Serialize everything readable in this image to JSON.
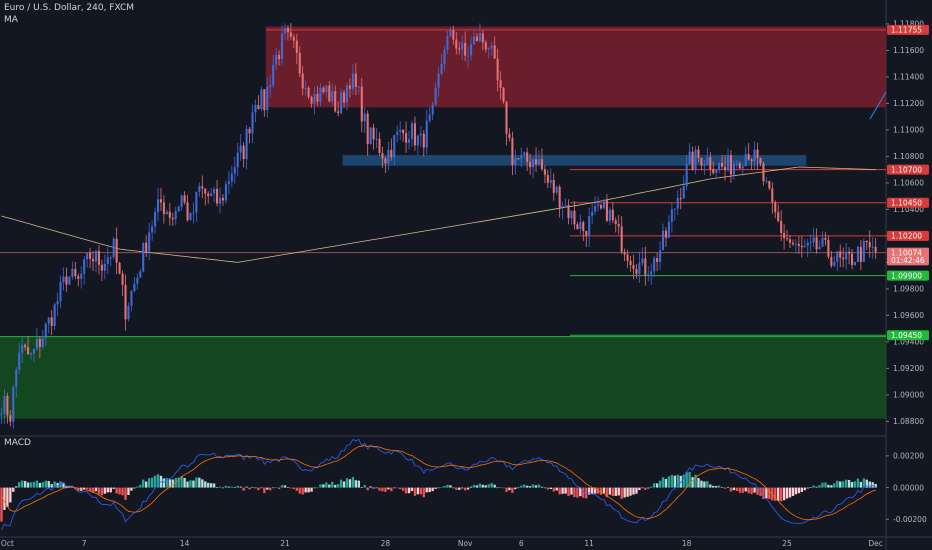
{
  "header": {
    "symbol_line": "Euro / U.S. Dollar, 240, FXCM",
    "indicator": "MA"
  },
  "macd_panel": {
    "label": "MACD"
  },
  "colors": {
    "background": "#131722",
    "up": "#3f6ad8",
    "down": "#e87272",
    "supply_zone": "#7a1f2b",
    "demand_zone": "#15501f",
    "blue_zone": "#1e4f7a",
    "ma": "#d3b98a",
    "resistance_line": "#d93a3a",
    "support_line": "#22b83a",
    "macd_pos": "#26a69a",
    "macd_neg": "#ef5350",
    "macd_line": "#2962ff",
    "signal_line": "#ff6d00"
  },
  "chart_data": {
    "type": "candlestick",
    "title": "Euro / U.S. Dollar, 240, FXCM",
    "timeframe": "240",
    "ylim": [
      1.0872,
      1.1192
    ],
    "price_ticks": [
      "1.11800",
      "1.11600",
      "1.11400",
      "1.11200",
      "1.11000",
      "1.10800",
      "1.10600",
      "1.10400",
      "1.10200",
      "1.10000",
      "1.09800",
      "1.09600",
      "1.09400",
      "1.09200",
      "1.09000",
      "1.08800"
    ],
    "x_ticks": [
      {
        "label": "Oct",
        "bar": 2
      },
      {
        "label": "7",
        "bar": 28
      },
      {
        "label": "14",
        "bar": 62
      },
      {
        "label": "21",
        "bar": 96
      },
      {
        "label": "28",
        "bar": 130
      },
      {
        "label": "Nov",
        "bar": 157
      },
      {
        "label": "6",
        "bar": 176
      },
      {
        "label": "11",
        "bar": 199
      },
      {
        "label": "18",
        "bar": 232
      },
      {
        "label": "25",
        "bar": 266
      },
      {
        "label": "Dec",
        "bar": 296
      }
    ],
    "total_bars": 300,
    "price_path": [
      [
        0,
        1.0895
      ],
      [
        3,
        1.0885
      ],
      [
        6,
        1.0935
      ],
      [
        10,
        1.0928
      ],
      [
        14,
        1.0945
      ],
      [
        18,
        1.0965
      ],
      [
        22,
        1.099
      ],
      [
        26,
        1.0985
      ],
      [
        30,
        1.1005
      ],
      [
        34,
        1.1
      ],
      [
        38,
        1.101
      ],
      [
        42,
        1.0965
      ],
      [
        46,
        1.099
      ],
      [
        50,
        1.1025
      ],
      [
        54,
        1.1045
      ],
      [
        58,
        1.1035
      ],
      [
        61,
        1.105
      ],
      [
        64,
        1.103
      ],
      [
        67,
        1.1055
      ],
      [
        70,
        1.105
      ],
      [
        74,
        1.1045
      ],
      [
        78,
        1.107
      ],
      [
        82,
        1.1085
      ],
      [
        86,
        1.1125
      ],
      [
        89,
        1.112
      ],
      [
        92,
        1.115
      ],
      [
        96,
        1.117
      ],
      [
        99,
        1.116
      ],
      [
        102,
        1.114
      ],
      [
        106,
        1.1125
      ],
      [
        110,
        1.113
      ],
      [
        114,
        1.1115
      ],
      [
        118,
        1.114
      ],
      [
        121,
        1.1125
      ],
      [
        124,
        1.1095
      ],
      [
        127,
        1.109
      ],
      [
        130,
        1.108
      ],
      [
        134,
        1.1095
      ],
      [
        138,
        1.11
      ],
      [
        142,
        1.109
      ],
      [
        146,
        1.111
      ],
      [
        150,
        1.1165
      ],
      [
        153,
        1.117
      ],
      [
        157,
        1.1155
      ],
      [
        161,
        1.117
      ],
      [
        165,
        1.1165
      ],
      [
        169,
        1.1125
      ],
      [
        173,
        1.108
      ],
      [
        177,
        1.1075
      ],
      [
        181,
        1.108
      ],
      [
        185,
        1.106
      ],
      [
        189,
        1.105
      ],
      [
        193,
        1.1035
      ],
      [
        197,
        1.1025
      ],
      [
        201,
        1.1035
      ],
      [
        205,
        1.104
      ],
      [
        209,
        1.102
      ],
      [
        213,
        1.1005
      ],
      [
        217,
        1.0995
      ],
      [
        221,
        1.1
      ],
      [
        225,
        1.102
      ],
      [
        229,
        1.105
      ],
      [
        233,
        1.1075
      ],
      [
        237,
        1.108
      ],
      [
        241,
        1.1075
      ],
      [
        245,
        1.107
      ],
      [
        249,
        1.1078
      ],
      [
        253,
        1.1085
      ],
      [
        257,
        1.107
      ],
      [
        261,
        1.104
      ],
      [
        265,
        1.102
      ],
      [
        269,
        1.101
      ],
      [
        273,
        1.1008
      ],
      [
        277,
        1.1012
      ],
      [
        281,
        1.1005
      ],
      [
        285,
        1.0998
      ],
      [
        289,
        1.1005
      ],
      [
        293,
        1.101
      ],
      [
        296,
        1.1007
      ]
    ],
    "moving_average_path": [
      [
        0,
        1.1035
      ],
      [
        40,
        1.101
      ],
      [
        80,
        1.1
      ],
      [
        120,
        1.1015
      ],
      [
        160,
        1.103
      ],
      [
        200,
        1.1045
      ],
      [
        240,
        1.1063
      ],
      [
        270,
        1.1072
      ],
      [
        296,
        1.107
      ]
    ],
    "zones": [
      {
        "name": "supply",
        "from_bar": 90,
        "to_bar": 300,
        "top": 1.1178,
        "bottom": 1.1117
      },
      {
        "name": "blue",
        "from_bar": 116,
        "to_bar": 273,
        "top": 1.1081,
        "bottom": 1.1073
      },
      {
        "name": "demand",
        "from_bar": 0,
        "to_bar": 300,
        "top": 1.0944,
        "bottom": 1.0882
      }
    ],
    "horizontal_lines": [
      {
        "name": "resistance",
        "price": 1.11755,
        "from_bar": 90,
        "color": "#d93a3a"
      },
      {
        "name": "resistance",
        "price": 1.107,
        "from_bar": 193,
        "color": "#d93a3a"
      },
      {
        "name": "resistance",
        "price": 1.1045,
        "from_bar": 193,
        "color": "#d93a3a"
      },
      {
        "name": "resistance",
        "price": 1.102,
        "from_bar": 193,
        "color": "#d93a3a"
      },
      {
        "name": "support",
        "price": 1.099,
        "from_bar": 193,
        "color": "#22b83a"
      },
      {
        "name": "support",
        "price": 1.0945,
        "from_bar": 193,
        "color": "#22b83a"
      },
      {
        "name": "current",
        "price": 1.10074,
        "from_bar": 0,
        "color": "#e87272"
      }
    ],
    "price_tags": [
      {
        "text": "1.11755",
        "price": 1.11755,
        "bg": "#d93a3a",
        "fg": "#ffffff"
      },
      {
        "text": "1.10700",
        "price": 1.107,
        "bg": "#d93a3a",
        "fg": "#ffffff"
      },
      {
        "text": "1.10450",
        "price": 1.1045,
        "bg": "#d93a3a",
        "fg": "#ffffff"
      },
      {
        "text": "1.10200",
        "price": 1.102,
        "bg": "#d93a3a",
        "fg": "#ffffff"
      },
      {
        "text": "1.10074",
        "price": 1.10074,
        "bg": "#e87272",
        "fg": "#ffffff"
      },
      {
        "text": "01:42:46",
        "price": 1.10015,
        "bg": "#e87272",
        "fg": "#ffffff"
      },
      {
        "text": "1.09900",
        "price": 1.099,
        "bg": "#22b83a",
        "fg": "#ffffff"
      },
      {
        "text": "1.09450",
        "price": 1.0945,
        "bg": "#22b83a",
        "fg": "#ffffff"
      }
    ],
    "macd": {
      "ylim": [
        -0.0028,
        0.003
      ],
      "ticks": [
        "0.00200",
        "0.00000",
        "-0.00200"
      ],
      "tick_values": [
        0.002,
        0,
        -0.002
      ]
    }
  }
}
